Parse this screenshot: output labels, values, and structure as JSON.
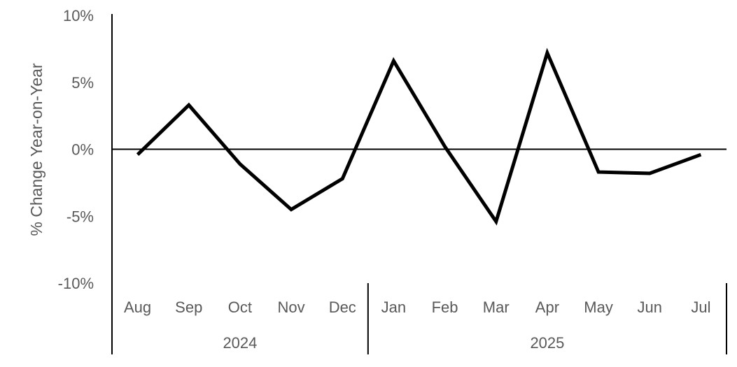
{
  "chart_data": {
    "type": "line",
    "title": "",
    "ylabel": "% Change Year-on-Year",
    "xlabel": "",
    "ylim": [
      -10,
      10
    ],
    "y_ticks": [
      10,
      5,
      0,
      -5,
      -10
    ],
    "y_tick_labels": [
      "10%",
      "5%",
      "0%",
      "-5%",
      "-10%"
    ],
    "categories": [
      "Aug",
      "Sep",
      "Oct",
      "Nov",
      "Dec",
      "Jan",
      "Feb",
      "Mar",
      "Apr",
      "May",
      "Jun",
      "Jul"
    ],
    "category_groups": [
      {
        "label": "2024",
        "count": 5
      },
      {
        "label": "2025",
        "count": 7
      }
    ],
    "series": [
      {
        "values": [
          -0.4,
          3.3,
          -1.1,
          -4.5,
          -2.2,
          6.6,
          0.2,
          -5.4,
          7.2,
          -1.7,
          -1.8,
          -0.4
        ],
        "color": "#000000"
      }
    ],
    "grid": false,
    "legend": "none"
  }
}
